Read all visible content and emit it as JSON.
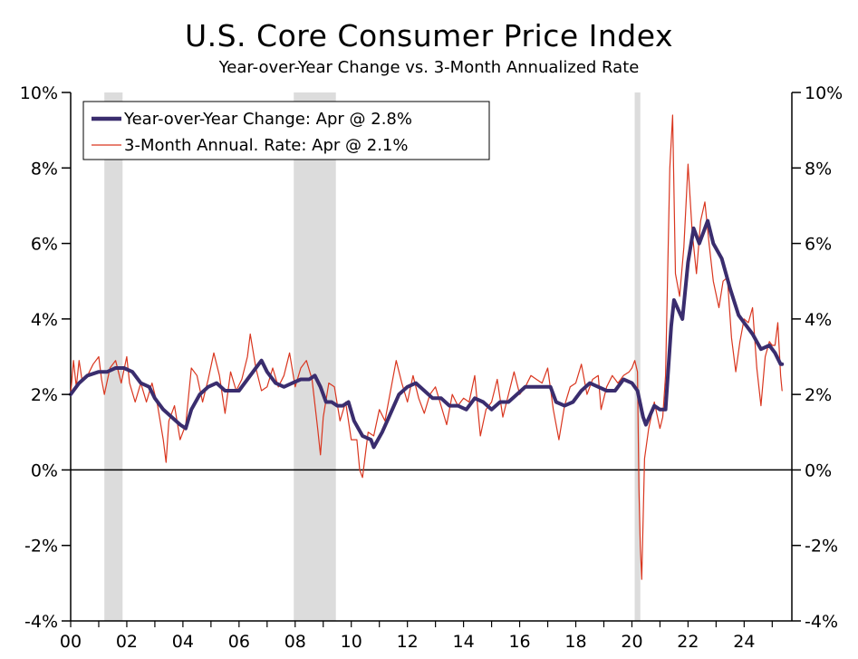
{
  "title": "U.S. Core Consumer Price Index",
  "subtitle": "Year-over-Year Change vs. 3-Month Annualized Rate",
  "legend": {
    "yoy": "Year-over-Year Change: Apr @ 2.8%",
    "ann": "3-Month Annual. Rate: Apr @ 2.1%"
  },
  "colors": {
    "yoy": "#3a2d6e",
    "ann": "#d9361f",
    "recession": "#dcdcdc"
  },
  "chart_data": {
    "type": "line",
    "title": "U.S. Core Consumer Price Index",
    "subtitle": "Year-over-Year Change vs. 3-Month Annualized Rate",
    "xlim": [
      2000.0,
      2025.7
    ],
    "ylim": [
      -4,
      10
    ],
    "x_tick_labels": [
      {
        "x": 2000,
        "label": "00"
      },
      {
        "x": 2002,
        "label": "02"
      },
      {
        "x": 2004,
        "label": "04"
      },
      {
        "x": 2006,
        "label": "06"
      },
      {
        "x": 2008,
        "label": "08"
      },
      {
        "x": 2010,
        "label": "10"
      },
      {
        "x": 2012,
        "label": "12"
      },
      {
        "x": 2014,
        "label": "14"
      },
      {
        "x": 2016,
        "label": "16"
      },
      {
        "x": 2018,
        "label": "18"
      },
      {
        "x": 2020,
        "label": "20"
      },
      {
        "x": 2022,
        "label": "22"
      },
      {
        "x": 2024,
        "label": "24"
      }
    ],
    "y_ticks": [
      -4,
      -2,
      0,
      2,
      4,
      6,
      8,
      10
    ],
    "y_tick_labels": [
      "-4%",
      "-2%",
      "0%",
      "2%",
      "4%",
      "6%",
      "8%",
      "10%"
    ],
    "legend_position": "top-left",
    "grid": false,
    "recessions": [
      [
        2001.2,
        2001.85
      ],
      [
        2007.95,
        2009.45
      ],
      [
        2020.1,
        2020.3
      ]
    ],
    "series": [
      {
        "name": "Year-over-Year Change: Apr @ 2.8%",
        "key": "yoy",
        "points": [
          [
            2000.0,
            2.0
          ],
          [
            2000.3,
            2.3
          ],
          [
            2000.6,
            2.5
          ],
          [
            2001.0,
            2.6
          ],
          [
            2001.3,
            2.6
          ],
          [
            2001.6,
            2.7
          ],
          [
            2001.9,
            2.7
          ],
          [
            2002.2,
            2.6
          ],
          [
            2002.5,
            2.3
          ],
          [
            2002.8,
            2.2
          ],
          [
            2003.0,
            1.9
          ],
          [
            2003.3,
            1.6
          ],
          [
            2003.6,
            1.4
          ],
          [
            2003.9,
            1.2
          ],
          [
            2004.1,
            1.1
          ],
          [
            2004.3,
            1.6
          ],
          [
            2004.6,
            2.0
          ],
          [
            2004.9,
            2.2
          ],
          [
            2005.2,
            2.3
          ],
          [
            2005.5,
            2.1
          ],
          [
            2005.8,
            2.1
          ],
          [
            2006.0,
            2.1
          ],
          [
            2006.3,
            2.4
          ],
          [
            2006.6,
            2.7
          ],
          [
            2006.8,
            2.9
          ],
          [
            2007.0,
            2.6
          ],
          [
            2007.3,
            2.3
          ],
          [
            2007.6,
            2.2
          ],
          [
            2007.9,
            2.3
          ],
          [
            2008.2,
            2.4
          ],
          [
            2008.5,
            2.4
          ],
          [
            2008.7,
            2.5
          ],
          [
            2008.9,
            2.2
          ],
          [
            2009.1,
            1.8
          ],
          [
            2009.3,
            1.8
          ],
          [
            2009.5,
            1.7
          ],
          [
            2009.7,
            1.7
          ],
          [
            2009.9,
            1.8
          ],
          [
            2010.1,
            1.3
          ],
          [
            2010.4,
            0.9
          ],
          [
            2010.7,
            0.8
          ],
          [
            2010.8,
            0.6
          ],
          [
            2011.1,
            1.0
          ],
          [
            2011.4,
            1.5
          ],
          [
            2011.7,
            2.0
          ],
          [
            2012.0,
            2.2
          ],
          [
            2012.3,
            2.3
          ],
          [
            2012.6,
            2.1
          ],
          [
            2012.9,
            1.9
          ],
          [
            2013.2,
            1.9
          ],
          [
            2013.5,
            1.7
          ],
          [
            2013.8,
            1.7
          ],
          [
            2014.1,
            1.6
          ],
          [
            2014.4,
            1.9
          ],
          [
            2014.7,
            1.8
          ],
          [
            2015.0,
            1.6
          ],
          [
            2015.3,
            1.8
          ],
          [
            2015.6,
            1.8
          ],
          [
            2015.9,
            2.0
          ],
          [
            2016.2,
            2.2
          ],
          [
            2016.5,
            2.2
          ],
          [
            2016.8,
            2.2
          ],
          [
            2017.1,
            2.2
          ],
          [
            2017.3,
            1.8
          ],
          [
            2017.6,
            1.7
          ],
          [
            2017.9,
            1.8
          ],
          [
            2018.2,
            2.1
          ],
          [
            2018.5,
            2.3
          ],
          [
            2018.8,
            2.2
          ],
          [
            2019.1,
            2.1
          ],
          [
            2019.4,
            2.1
          ],
          [
            2019.7,
            2.4
          ],
          [
            2020.0,
            2.3
          ],
          [
            2020.2,
            2.1
          ],
          [
            2020.4,
            1.4
          ],
          [
            2020.5,
            1.2
          ],
          [
            2020.8,
            1.7
          ],
          [
            2021.0,
            1.6
          ],
          [
            2021.2,
            1.6
          ],
          [
            2021.4,
            3.8
          ],
          [
            2021.5,
            4.5
          ],
          [
            2021.8,
            4.0
          ],
          [
            2022.0,
            5.5
          ],
          [
            2022.2,
            6.4
          ],
          [
            2022.4,
            6.0
          ],
          [
            2022.7,
            6.6
          ],
          [
            2022.9,
            6.0
          ],
          [
            2023.2,
            5.6
          ],
          [
            2023.5,
            4.8
          ],
          [
            2023.8,
            4.1
          ],
          [
            2024.0,
            3.9
          ],
          [
            2024.3,
            3.6
          ],
          [
            2024.6,
            3.2
          ],
          [
            2024.9,
            3.3
          ],
          [
            2025.1,
            3.1
          ],
          [
            2025.3,
            2.8
          ],
          [
            2025.35,
            2.8
          ]
        ]
      },
      {
        "name": "3-Month Annual. Rate: Apr @ 2.1%",
        "key": "ann",
        "points": [
          [
            2000.0,
            2.0
          ],
          [
            2000.1,
            2.9
          ],
          [
            2000.2,
            2.2
          ],
          [
            2000.3,
            2.9
          ],
          [
            2000.4,
            2.4
          ],
          [
            2000.6,
            2.5
          ],
          [
            2000.8,
            2.8
          ],
          [
            2001.0,
            3.0
          ],
          [
            2001.1,
            2.4
          ],
          [
            2001.2,
            2.0
          ],
          [
            2001.4,
            2.7
          ],
          [
            2001.6,
            2.9
          ],
          [
            2001.8,
            2.3
          ],
          [
            2002.0,
            3.0
          ],
          [
            2002.1,
            2.3
          ],
          [
            2002.3,
            1.8
          ],
          [
            2002.5,
            2.3
          ],
          [
            2002.7,
            1.8
          ],
          [
            2002.9,
            2.3
          ],
          [
            2003.1,
            1.7
          ],
          [
            2003.3,
            0.8
          ],
          [
            2003.4,
            0.2
          ],
          [
            2003.5,
            1.3
          ],
          [
            2003.7,
            1.7
          ],
          [
            2003.9,
            0.8
          ],
          [
            2004.1,
            1.2
          ],
          [
            2004.3,
            2.7
          ],
          [
            2004.5,
            2.5
          ],
          [
            2004.7,
            1.8
          ],
          [
            2004.9,
            2.4
          ],
          [
            2005.1,
            3.1
          ],
          [
            2005.3,
            2.5
          ],
          [
            2005.5,
            1.5
          ],
          [
            2005.7,
            2.6
          ],
          [
            2005.9,
            2.1
          ],
          [
            2006.1,
            2.4
          ],
          [
            2006.3,
            3.0
          ],
          [
            2006.4,
            3.6
          ],
          [
            2006.6,
            2.7
          ],
          [
            2006.8,
            2.1
          ],
          [
            2007.0,
            2.2
          ],
          [
            2007.2,
            2.7
          ],
          [
            2007.4,
            2.2
          ],
          [
            2007.6,
            2.5
          ],
          [
            2007.8,
            3.1
          ],
          [
            2008.0,
            2.2
          ],
          [
            2008.2,
            2.7
          ],
          [
            2008.4,
            2.9
          ],
          [
            2008.6,
            2.4
          ],
          [
            2008.8,
            1.1
          ],
          [
            2008.9,
            0.4
          ],
          [
            2009.0,
            1.4
          ],
          [
            2009.2,
            2.3
          ],
          [
            2009.4,
            2.2
          ],
          [
            2009.6,
            1.3
          ],
          [
            2009.8,
            1.8
          ],
          [
            2010.0,
            0.8
          ],
          [
            2010.2,
            0.8
          ],
          [
            2010.3,
            0.0
          ],
          [
            2010.4,
            -0.2
          ],
          [
            2010.6,
            1.0
          ],
          [
            2010.8,
            0.9
          ],
          [
            2011.0,
            1.6
          ],
          [
            2011.2,
            1.3
          ],
          [
            2011.4,
            2.1
          ],
          [
            2011.6,
            2.9
          ],
          [
            2011.8,
            2.3
          ],
          [
            2012.0,
            1.8
          ],
          [
            2012.2,
            2.5
          ],
          [
            2012.4,
            1.9
          ],
          [
            2012.6,
            1.5
          ],
          [
            2012.8,
            2.0
          ],
          [
            2013.0,
            2.2
          ],
          [
            2013.2,
            1.7
          ],
          [
            2013.4,
            1.2
          ],
          [
            2013.6,
            2.0
          ],
          [
            2013.8,
            1.7
          ],
          [
            2014.0,
            1.9
          ],
          [
            2014.2,
            1.8
          ],
          [
            2014.4,
            2.5
          ],
          [
            2014.6,
            0.9
          ],
          [
            2014.8,
            1.6
          ],
          [
            2015.0,
            1.8
          ],
          [
            2015.2,
            2.4
          ],
          [
            2015.4,
            1.4
          ],
          [
            2015.6,
            2.0
          ],
          [
            2015.8,
            2.6
          ],
          [
            2016.0,
            2.0
          ],
          [
            2016.2,
            2.2
          ],
          [
            2016.4,
            2.5
          ],
          [
            2016.6,
            2.4
          ],
          [
            2016.8,
            2.3
          ],
          [
            2017.0,
            2.7
          ],
          [
            2017.2,
            1.6
          ],
          [
            2017.4,
            0.8
          ],
          [
            2017.6,
            1.7
          ],
          [
            2017.8,
            2.2
          ],
          [
            2018.0,
            2.3
          ],
          [
            2018.2,
            2.8
          ],
          [
            2018.4,
            2.0
          ],
          [
            2018.6,
            2.4
          ],
          [
            2018.8,
            2.5
          ],
          [
            2018.9,
            1.6
          ],
          [
            2019.1,
            2.2
          ],
          [
            2019.3,
            2.5
          ],
          [
            2019.5,
            2.3
          ],
          [
            2019.7,
            2.5
          ],
          [
            2019.9,
            2.6
          ],
          [
            2020.0,
            2.7
          ],
          [
            2020.1,
            2.9
          ],
          [
            2020.2,
            2.6
          ],
          [
            2020.25,
            -0.5
          ],
          [
            2020.3,
            -2.0
          ],
          [
            2020.35,
            -2.9
          ],
          [
            2020.45,
            0.3
          ],
          [
            2020.6,
            1.1
          ],
          [
            2020.8,
            1.8
          ],
          [
            2021.0,
            1.1
          ],
          [
            2021.1,
            1.4
          ],
          [
            2021.2,
            2.5
          ],
          [
            2021.35,
            8.0
          ],
          [
            2021.45,
            9.4
          ],
          [
            2021.55,
            5.2
          ],
          [
            2021.7,
            4.6
          ],
          [
            2021.85,
            5.9
          ],
          [
            2022.0,
            8.1
          ],
          [
            2022.15,
            6.3
          ],
          [
            2022.3,
            5.2
          ],
          [
            2022.45,
            6.6
          ],
          [
            2022.6,
            7.1
          ],
          [
            2022.75,
            6.0
          ],
          [
            2022.9,
            5.0
          ],
          [
            2023.1,
            4.3
          ],
          [
            2023.25,
            5.0
          ],
          [
            2023.4,
            5.1
          ],
          [
            2023.55,
            3.5
          ],
          [
            2023.7,
            2.6
          ],
          [
            2023.85,
            3.4
          ],
          [
            2024.0,
            4.0
          ],
          [
            2024.15,
            3.9
          ],
          [
            2024.3,
            4.3
          ],
          [
            2024.45,
            2.7
          ],
          [
            2024.6,
            1.7
          ],
          [
            2024.75,
            3.0
          ],
          [
            2024.9,
            3.4
          ],
          [
            2025.0,
            3.3
          ],
          [
            2025.1,
            3.3
          ],
          [
            2025.2,
            3.9
          ],
          [
            2025.3,
            2.5
          ],
          [
            2025.35,
            2.1
          ]
        ]
      }
    ]
  }
}
